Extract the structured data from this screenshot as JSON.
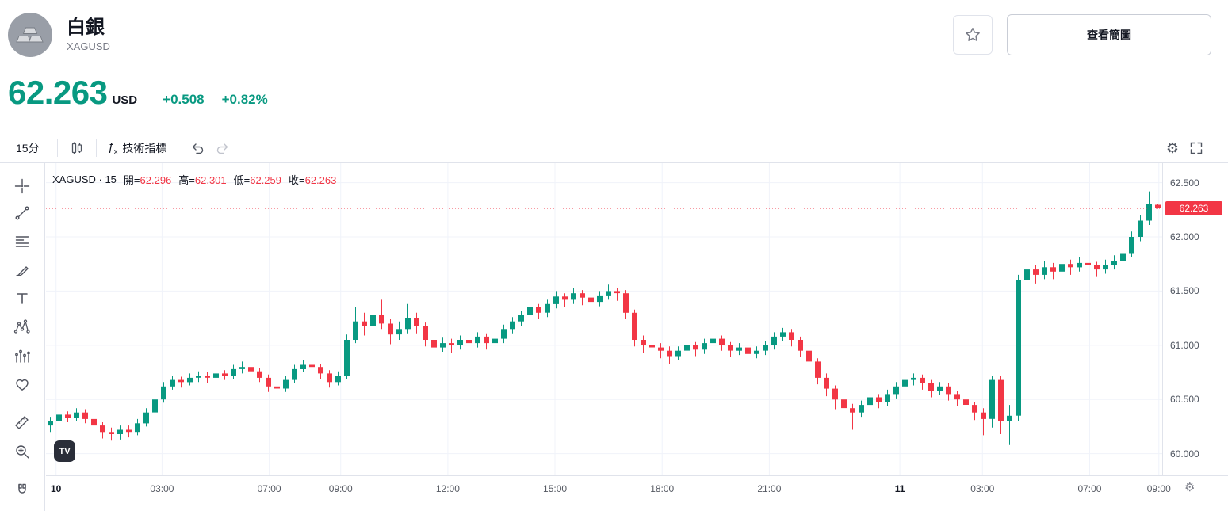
{
  "header": {
    "title": "白銀",
    "symbol": "XAGUSD",
    "view_chart_button": "查看簡圖"
  },
  "quote": {
    "price": "62.263",
    "currency": "USD",
    "change": "+0.508",
    "change_percent": "+0.82%"
  },
  "toolbar": {
    "interval": "15分",
    "indicators": "技術指標",
    "icons": [
      "candlestick-style",
      "fx-indicators",
      "undo",
      "redo",
      "settings-gear",
      "fullscreen"
    ]
  },
  "drawing_tools": [
    "crosshair",
    "trend-line",
    "fib-retracement",
    "brush",
    "text",
    "xabcd-pattern",
    "forecast-pattern",
    "emoji-heart",
    "measure-ruler",
    "zoom-in",
    "magnet"
  ],
  "legend": {
    "symbol_interval": "XAGUSD · 15",
    "open_label": "開=",
    "open_value": "62.296",
    "high_label": "高=",
    "high_value": "62.301",
    "low_label": "低=",
    "low_value": "62.259",
    "close_label": "收=",
    "close_value": "62.263"
  },
  "watermark": "TV",
  "colors": {
    "up": "#089981",
    "down": "#f23645",
    "grid": "#f0f3fa",
    "border": "#e0e3eb",
    "text_dark": "#131722",
    "text_gray": "#787b86"
  },
  "chart_data": {
    "type": "candlestick",
    "symbol": "XAGUSD",
    "interval": "15",
    "title": "XAGUSD · 15",
    "open": 62.296,
    "high": 62.301,
    "low": 62.259,
    "close": 62.263,
    "last_price": 62.263,
    "last_price_label": "62.263",
    "y_ticks": [
      "62.500",
      "62.000",
      "61.500",
      "61.000",
      "60.500",
      "60.000"
    ],
    "y_range": [
      59.8,
      62.68
    ],
    "x_ticks": [
      {
        "label": "10",
        "pos": 0.009,
        "major": true
      },
      {
        "label": "03:00",
        "pos": 0.104
      },
      {
        "label": "07:00",
        "pos": 0.2
      },
      {
        "label": "09:00",
        "pos": 0.264
      },
      {
        "label": "12:00",
        "pos": 0.36
      },
      {
        "label": "15:00",
        "pos": 0.456
      },
      {
        "label": "18:00",
        "pos": 0.552
      },
      {
        "label": "21:00",
        "pos": 0.648
      },
      {
        "label": "11",
        "pos": 0.765,
        "major": true
      },
      {
        "label": "03:00",
        "pos": 0.839
      },
      {
        "label": "07:00",
        "pos": 0.935
      },
      {
        "label": "09:00",
        "pos": 0.997
      }
    ],
    "up_color": "#089981",
    "down_color": "#f23645",
    "grid_color": "#f0f3fa",
    "grid_on": true,
    "legend_position": "top-left",
    "candles": [
      [
        60.26,
        60.34,
        60.2,
        60.3
      ],
      [
        60.3,
        60.4,
        60.27,
        60.36
      ],
      [
        60.36,
        60.39,
        60.29,
        60.33
      ],
      [
        60.33,
        60.42,
        60.3,
        60.38
      ],
      [
        60.38,
        60.41,
        60.28,
        60.32
      ],
      [
        60.32,
        60.35,
        60.22,
        60.26
      ],
      [
        60.26,
        60.29,
        60.14,
        60.2
      ],
      [
        60.2,
        60.24,
        60.12,
        60.18
      ],
      [
        60.18,
        60.26,
        60.13,
        60.22
      ],
      [
        60.22,
        60.26,
        60.15,
        60.2
      ],
      [
        60.2,
        60.32,
        60.17,
        60.28
      ],
      [
        60.28,
        60.42,
        60.25,
        60.38
      ],
      [
        60.38,
        60.54,
        60.35,
        60.5
      ],
      [
        60.5,
        60.66,
        60.47,
        60.62
      ],
      [
        60.62,
        60.72,
        60.59,
        60.68
      ],
      [
        60.68,
        60.71,
        60.61,
        60.66
      ],
      [
        60.66,
        60.74,
        60.63,
        60.7
      ],
      [
        60.7,
        60.76,
        60.66,
        60.72
      ],
      [
        60.72,
        60.75,
        60.65,
        60.7
      ],
      [
        60.7,
        60.78,
        60.67,
        60.74
      ],
      [
        60.74,
        60.77,
        60.68,
        60.72
      ],
      [
        60.72,
        60.82,
        60.69,
        60.78
      ],
      [
        60.78,
        60.85,
        60.74,
        60.8
      ],
      [
        60.8,
        60.83,
        60.72,
        60.76
      ],
      [
        60.76,
        60.79,
        60.66,
        60.7
      ],
      [
        60.7,
        60.73,
        60.57,
        60.62
      ],
      [
        60.62,
        60.66,
        60.54,
        60.6
      ],
      [
        60.6,
        60.72,
        60.57,
        60.68
      ],
      [
        60.68,
        60.82,
        60.65,
        60.78
      ],
      [
        60.78,
        60.86,
        60.75,
        60.82
      ],
      [
        60.82,
        60.85,
        60.75,
        60.8
      ],
      [
        60.8,
        60.83,
        60.69,
        60.74
      ],
      [
        60.74,
        60.77,
        60.61,
        60.66
      ],
      [
        60.66,
        60.76,
        60.63,
        60.72
      ],
      [
        60.72,
        61.1,
        60.69,
        61.05
      ],
      [
        61.05,
        61.35,
        61.02,
        61.22
      ],
      [
        61.22,
        61.3,
        61.09,
        61.18
      ],
      [
        61.18,
        61.45,
        61.14,
        61.28
      ],
      [
        61.28,
        61.42,
        61.15,
        61.2
      ],
      [
        61.2,
        61.24,
        61.01,
        61.1
      ],
      [
        61.1,
        61.22,
        61.05,
        61.15
      ],
      [
        61.15,
        61.38,
        61.11,
        61.25
      ],
      [
        61.25,
        61.3,
        61.11,
        61.18
      ],
      [
        61.18,
        61.21,
        60.99,
        61.05
      ],
      [
        61.05,
        61.09,
        60.91,
        60.98
      ],
      [
        60.98,
        61.07,
        60.94,
        61.02
      ],
      [
        61.02,
        61.06,
        60.93,
        61.0
      ],
      [
        61.0,
        61.09,
        60.96,
        61.05
      ],
      [
        61.05,
        61.08,
        60.96,
        61.02
      ],
      [
        61.02,
        61.12,
        60.98,
        61.08
      ],
      [
        61.08,
        61.11,
        60.96,
        61.02
      ],
      [
        61.02,
        61.1,
        60.98,
        61.06
      ],
      [
        61.06,
        61.19,
        61.02,
        61.15
      ],
      [
        61.15,
        61.26,
        61.11,
        61.22
      ],
      [
        61.22,
        61.32,
        61.18,
        61.28
      ],
      [
        61.28,
        61.39,
        61.24,
        61.35
      ],
      [
        61.35,
        61.38,
        61.24,
        61.3
      ],
      [
        61.3,
        61.42,
        61.26,
        61.38
      ],
      [
        61.38,
        61.5,
        61.34,
        61.45
      ],
      [
        61.45,
        61.48,
        61.35,
        61.42
      ],
      [
        61.42,
        61.53,
        61.38,
        61.48
      ],
      [
        61.48,
        61.51,
        61.37,
        61.44
      ],
      [
        61.44,
        61.47,
        61.33,
        61.4
      ],
      [
        61.4,
        61.5,
        61.36,
        61.46
      ],
      [
        61.46,
        61.56,
        61.42,
        61.5
      ],
      [
        61.5,
        61.53,
        61.41,
        61.48
      ],
      [
        61.48,
        61.51,
        61.24,
        61.3
      ],
      [
        61.3,
        61.33,
        60.99,
        61.05
      ],
      [
        61.05,
        61.09,
        60.93,
        61.0
      ],
      [
        61.0,
        61.04,
        60.91,
        60.98
      ],
      [
        60.98,
        61.02,
        60.88,
        60.95
      ],
      [
        60.95,
        60.99,
        60.83,
        60.9
      ],
      [
        60.9,
        60.99,
        60.86,
        60.95
      ],
      [
        60.95,
        61.04,
        60.91,
        61.0
      ],
      [
        61.0,
        61.03,
        60.9,
        60.96
      ],
      [
        60.96,
        61.06,
        60.92,
        61.02
      ],
      [
        61.02,
        61.1,
        60.98,
        61.06
      ],
      [
        61.06,
        61.09,
        60.95,
        61.0
      ],
      [
        61.0,
        61.03,
        60.89,
        60.95
      ],
      [
        60.95,
        61.02,
        60.91,
        60.98
      ],
      [
        60.98,
        61.01,
        60.86,
        60.92
      ],
      [
        60.92,
        60.99,
        60.88,
        60.95
      ],
      [
        60.95,
        61.04,
        60.91,
        61.0
      ],
      [
        61.0,
        61.12,
        60.96,
        61.08
      ],
      [
        61.08,
        61.16,
        61.04,
        61.12
      ],
      [
        61.12,
        61.15,
        60.99,
        61.05
      ],
      [
        61.05,
        61.08,
        60.89,
        60.95
      ],
      [
        60.95,
        60.98,
        60.79,
        60.85
      ],
      [
        60.85,
        60.88,
        60.64,
        60.7
      ],
      [
        60.7,
        60.74,
        60.53,
        60.6
      ],
      [
        60.6,
        60.63,
        60.41,
        60.5
      ],
      [
        60.5,
        60.53,
        60.28,
        60.42
      ],
      [
        60.42,
        60.46,
        60.22,
        60.38
      ],
      [
        60.38,
        60.49,
        60.34,
        60.45
      ],
      [
        60.45,
        60.56,
        60.41,
        60.52
      ],
      [
        60.52,
        60.55,
        60.42,
        60.48
      ],
      [
        60.48,
        60.59,
        60.44,
        60.55
      ],
      [
        60.55,
        60.66,
        60.51,
        60.62
      ],
      [
        60.62,
        60.72,
        60.58,
        60.68
      ],
      [
        60.68,
        60.74,
        60.63,
        60.7
      ],
      [
        60.7,
        60.73,
        60.59,
        60.65
      ],
      [
        60.65,
        60.68,
        60.52,
        60.58
      ],
      [
        60.58,
        60.66,
        60.54,
        60.62
      ],
      [
        60.62,
        60.65,
        60.49,
        60.55
      ],
      [
        60.55,
        60.58,
        60.44,
        60.5
      ],
      [
        60.5,
        60.53,
        60.39,
        60.45
      ],
      [
        60.45,
        60.48,
        60.31,
        60.38
      ],
      [
        60.38,
        60.42,
        60.17,
        60.32
      ],
      [
        60.32,
        60.72,
        60.24,
        60.68
      ],
      [
        60.68,
        60.72,
        60.18,
        60.3
      ],
      [
        60.3,
        60.45,
        60.08,
        60.35
      ],
      [
        60.35,
        61.65,
        60.3,
        61.6
      ],
      [
        61.6,
        61.78,
        61.44,
        61.7
      ],
      [
        61.7,
        61.74,
        61.57,
        61.65
      ],
      [
        61.65,
        61.78,
        61.61,
        61.72
      ],
      [
        61.72,
        61.76,
        61.61,
        61.68
      ],
      [
        61.68,
        61.8,
        61.64,
        61.75
      ],
      [
        61.75,
        61.79,
        61.65,
        61.72
      ],
      [
        61.72,
        61.81,
        61.68,
        61.76
      ],
      [
        61.76,
        61.8,
        61.67,
        61.74
      ],
      [
        61.74,
        61.77,
        61.63,
        61.7
      ],
      [
        61.7,
        61.79,
        61.66,
        61.74
      ],
      [
        61.74,
        61.83,
        61.7,
        61.78
      ],
      [
        61.78,
        61.9,
        61.74,
        61.85
      ],
      [
        61.85,
        62.05,
        61.81,
        62.0
      ],
      [
        62.0,
        62.2,
        61.96,
        62.15
      ],
      [
        62.15,
        62.42,
        62.11,
        62.3
      ],
      [
        62.296,
        62.301,
        62.259,
        62.263
      ]
    ]
  }
}
